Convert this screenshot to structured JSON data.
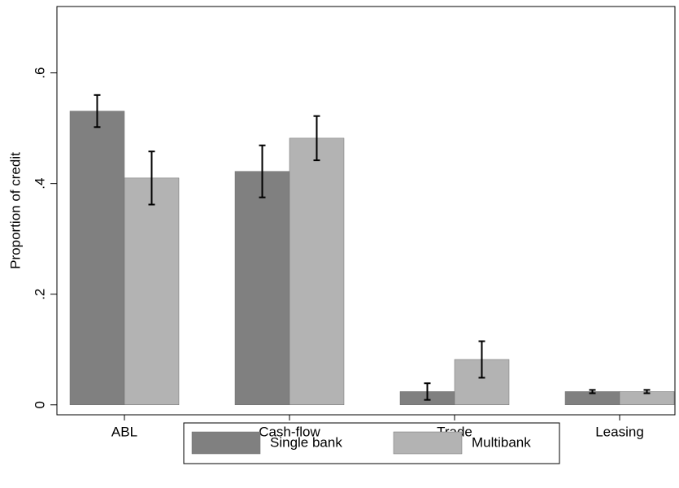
{
  "chart_data": {
    "type": "bar",
    "ylabel": "Proportion of credit",
    "categories": [
      "ABL",
      "Cash-flow",
      "Trade",
      "Leasing"
    ],
    "series": [
      {
        "name": "Single bank",
        "color": "#808080",
        "values": [
          0.531,
          0.422,
          0.024,
          0.024
        ],
        "errors": [
          0.029,
          0.047,
          0.015,
          0.003
        ]
      },
      {
        "name": "Multibank",
        "color": "#b3b3b3",
        "values": [
          0.41,
          0.482,
          0.082,
          0.024
        ],
        "errors": [
          0.048,
          0.04,
          0.033,
          0.003
        ]
      }
    ],
    "ylim": [
      -0.018,
      0.72
    ],
    "yticks": [
      0,
      {
        "value": 0.2,
        "label": ".2"
      },
      {
        "value": 0.4,
        "label": ".4"
      },
      {
        "value": 0.6,
        "label": ".6"
      }
    ],
    "grid": false,
    "legend": "bottom"
  }
}
